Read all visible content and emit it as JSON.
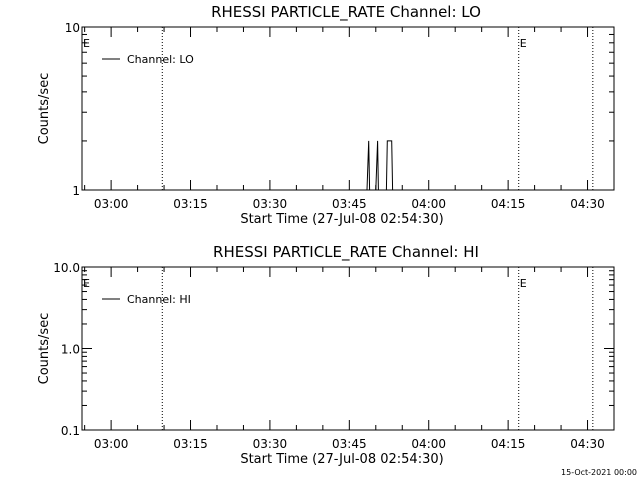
{
  "chart_data": [
    {
      "type": "line",
      "title": "RHESSI PARTICLE_RATE Channel: LO",
      "xlabel": "Start Time (27-Jul-08 02:54:30)",
      "ylabel": "Counts/sec",
      "yscale": "log",
      "ylim": [
        1,
        10
      ],
      "ytick_labels": [
        "1",
        "10"
      ],
      "xlim": [
        "02:54:30",
        "04:35:00"
      ],
      "xtick_labels": [
        "03:00",
        "03:15",
        "03:30",
        "03:45",
        "04:00",
        "04:15",
        "04:30"
      ],
      "grid": false,
      "legend_position": "top-left",
      "series": [
        {
          "name": "Channel: LO",
          "x": [
            "03:48:20",
            "03:48:40",
            "03:48:50",
            "03:49:10",
            "03:50:00",
            "03:50:20",
            "03:50:30",
            "03:50:50",
            "03:52:00",
            "03:52:10",
            "03:53:00",
            "03:53:10",
            "03:53:30"
          ],
          "y": [
            1,
            2,
            1,
            1,
            1,
            2,
            1,
            1,
            1,
            2,
            2,
            1,
            1
          ]
        }
      ],
      "event_markers": [
        {
          "time": "03:09:40",
          "label": ""
        },
        {
          "time": "04:17:00",
          "label": "E"
        },
        {
          "time": "04:31:00",
          "label": ""
        }
      ],
      "corner_label": "E"
    },
    {
      "type": "line",
      "title": "RHESSI PARTICLE_RATE Channel: HI",
      "xlabel": "Start Time (27-Jul-08 02:54:30)",
      "ylabel": "Counts/sec",
      "yscale": "log",
      "ylim": [
        0.1,
        10
      ],
      "ytick_labels": [
        "0.1",
        "1.0",
        "10.0"
      ],
      "xlim": [
        "02:54:30",
        "04:35:00"
      ],
      "xtick_labels": [
        "03:00",
        "03:15",
        "03:30",
        "03:45",
        "04:00",
        "04:15",
        "04:30"
      ],
      "grid": false,
      "legend_position": "top-left",
      "series": [
        {
          "name": "Channel: HI",
          "x": [],
          "y": []
        }
      ],
      "event_markers": [
        {
          "time": "03:09:40",
          "label": ""
        },
        {
          "time": "04:17:00",
          "label": "E"
        },
        {
          "time": "04:31:00",
          "label": ""
        }
      ],
      "corner_label": "E"
    }
  ],
  "footer": {
    "timestamp": "15-Oct-2021 00:00"
  }
}
